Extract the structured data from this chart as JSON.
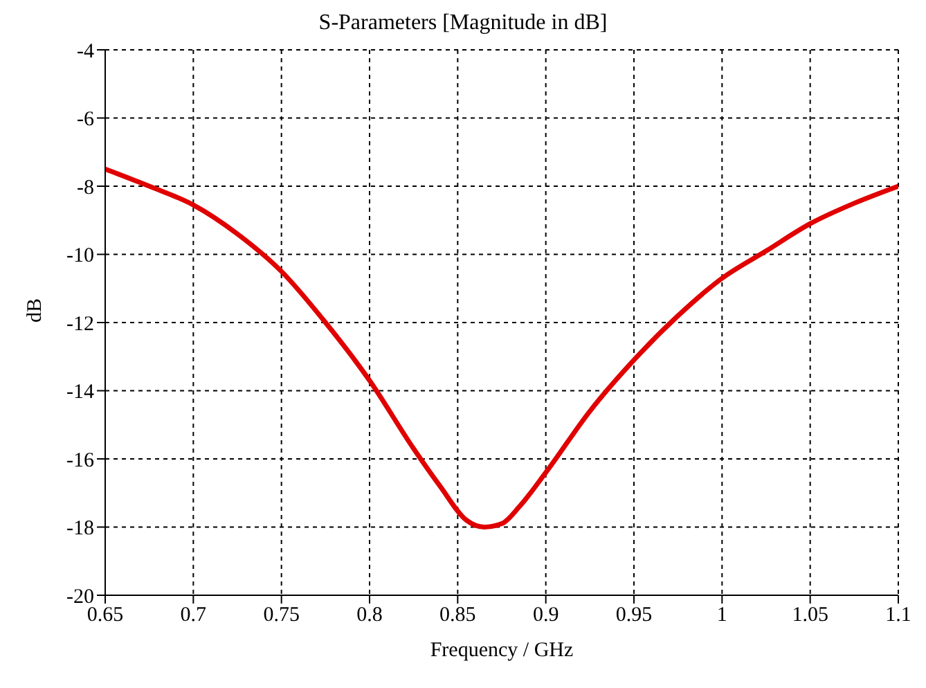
{
  "chart_data": {
    "type": "line",
    "title": "S-Parameters [Magnitude in dB]",
    "xlabel": "Frequency / GHz",
    "ylabel": "dB",
    "x": [
      0.65,
      0.675,
      0.7,
      0.725,
      0.75,
      0.775,
      0.8,
      0.825,
      0.84,
      0.855,
      0.865,
      0.875,
      0.885,
      0.9,
      0.925,
      0.95,
      0.975,
      1.0,
      1.025,
      1.05,
      1.075,
      1.1
    ],
    "series": [
      {
        "color": "#e00000",
        "values": [
          -7.5,
          -8.0,
          -8.55,
          -9.4,
          -10.5,
          -12.0,
          -13.7,
          -15.7,
          -16.8,
          -17.8,
          -18.0,
          -17.9,
          -17.4,
          -16.4,
          -14.6,
          -13.1,
          -11.8,
          -10.7,
          -9.9,
          -9.1,
          -8.5,
          -8.0
        ]
      }
    ],
    "xlim": [
      0.65,
      1.1
    ],
    "xticks": [
      0.65,
      0.7,
      0.75,
      0.8,
      0.85,
      0.9,
      0.95,
      1,
      1.05,
      1.1
    ],
    "ylim": [
      -20,
      -4
    ],
    "yticks": [
      -20,
      -18,
      -16,
      -14,
      -12,
      -10,
      -8,
      -6,
      -4
    ],
    "grid": true,
    "legend": false,
    "marker": "none",
    "line_style": "solid"
  }
}
